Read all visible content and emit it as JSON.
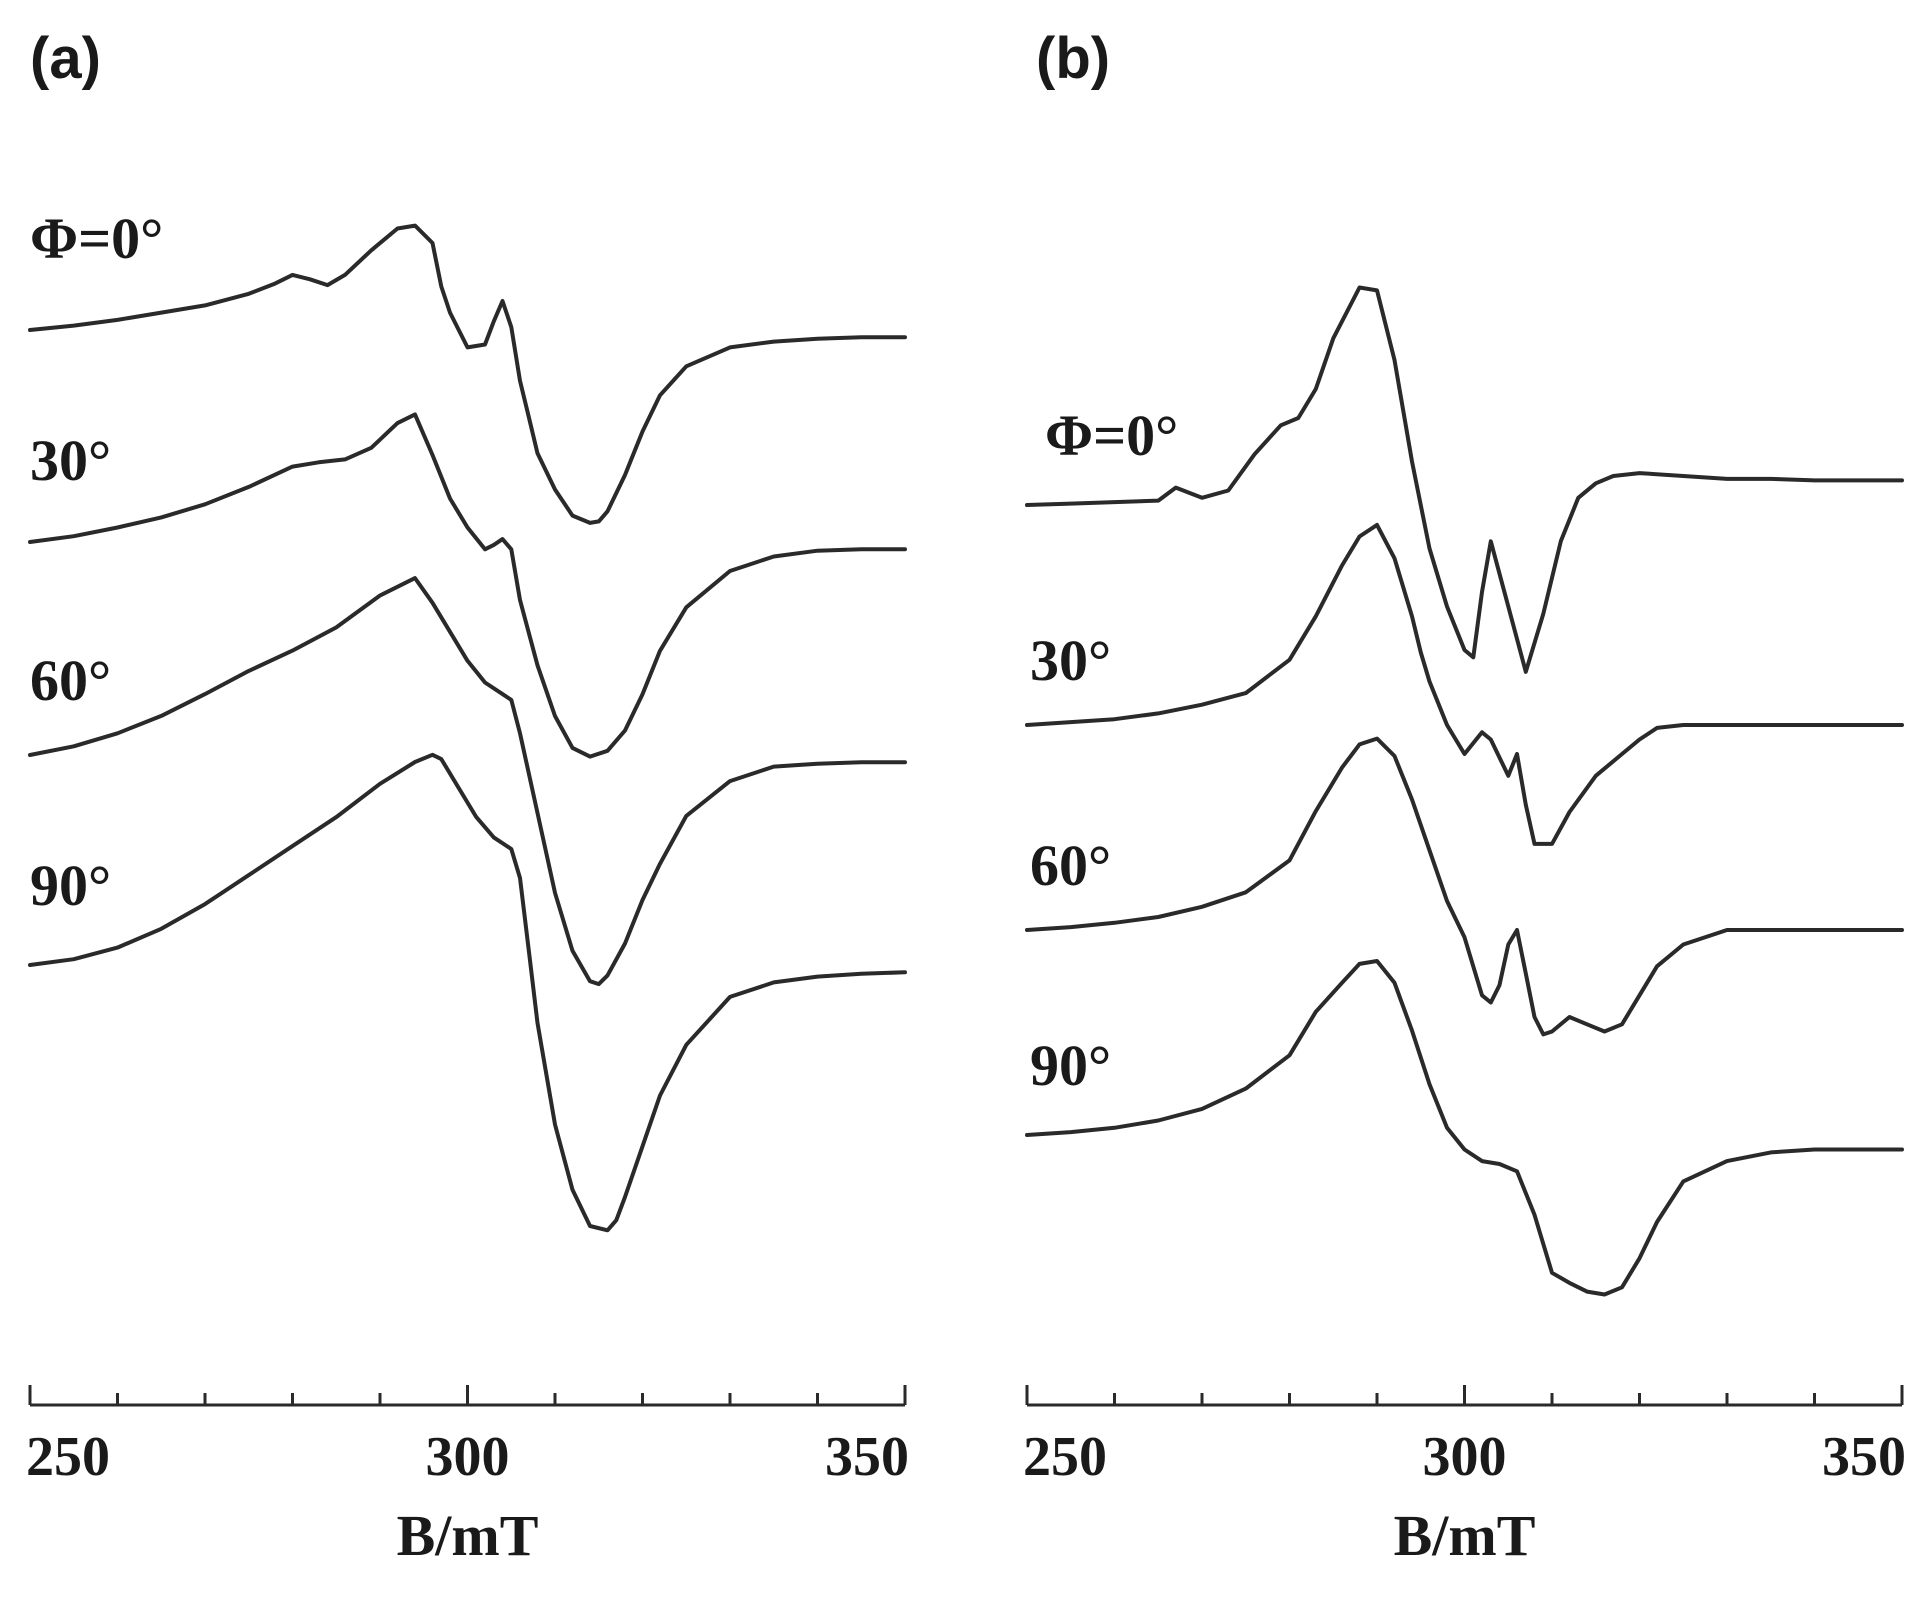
{
  "chart_data": [
    {
      "type": "line",
      "panel_label": "(a)",
      "xlabel": "B/mT",
      "xlim": [
        250,
        350
      ],
      "xticks": [
        250,
        300,
        350
      ],
      "curve_labels": [
        "Φ=0°",
        "30°",
        "60°",
        "90°"
      ],
      "grid": false,
      "series": [
        {
          "name": "Φ=0°",
          "x": [
            250,
            255,
            260,
            265,
            270,
            275,
            278,
            280,
            282,
            284,
            286,
            289,
            292,
            294,
            296,
            297,
            298,
            300,
            302,
            303,
            304,
            305,
            306,
            307,
            308,
            310,
            312,
            314,
            315,
            316,
            318,
            320,
            322,
            325,
            330,
            335,
            340,
            345,
            350
          ],
          "y": [
            0,
            0.03,
            0.07,
            0.12,
            0.17,
            0.25,
            0.32,
            0.38,
            0.35,
            0.31,
            0.38,
            0.55,
            0.7,
            0.72,
            0.6,
            0.3,
            0.12,
            -0.12,
            -0.1,
            0.06,
            0.2,
            0.02,
            -0.35,
            -0.6,
            -0.85,
            -1.1,
            -1.28,
            -1.33,
            -1.32,
            -1.25,
            -1.0,
            -0.7,
            -0.45,
            -0.25,
            -0.12,
            -0.08,
            -0.06,
            -0.05,
            -0.05
          ]
        },
        {
          "name": "30°",
          "x": [
            250,
            255,
            260,
            265,
            270,
            275,
            280,
            283,
            286,
            289,
            292,
            294,
            296,
            298,
            300,
            302,
            303,
            304,
            305,
            306,
            308,
            310,
            312,
            314,
            316,
            318,
            320,
            322,
            325,
            330,
            335,
            340,
            345,
            350
          ],
          "y": [
            0,
            0.04,
            0.1,
            0.17,
            0.26,
            0.38,
            0.52,
            0.55,
            0.57,
            0.65,
            0.82,
            0.88,
            0.6,
            0.3,
            0.1,
            -0.05,
            -0.02,
            0.02,
            -0.05,
            -0.4,
            -0.85,
            -1.2,
            -1.42,
            -1.48,
            -1.44,
            -1.3,
            -1.05,
            -0.75,
            -0.45,
            -0.2,
            -0.1,
            -0.06,
            -0.05,
            -0.05
          ]
        },
        {
          "name": "60°",
          "x": [
            250,
            255,
            260,
            265,
            270,
            275,
            280,
            285,
            290,
            294,
            296,
            298,
            300,
            302,
            304,
            305,
            306,
            308,
            310,
            312,
            314,
            315,
            316,
            318,
            320,
            322,
            325,
            330,
            335,
            340,
            345,
            350
          ],
          "y": [
            0,
            0.06,
            0.15,
            0.27,
            0.42,
            0.58,
            0.72,
            0.88,
            1.1,
            1.22,
            1.05,
            0.85,
            0.65,
            0.5,
            0.42,
            0.38,
            0.15,
            -0.4,
            -0.95,
            -1.35,
            -1.56,
            -1.58,
            -1.52,
            -1.3,
            -1.0,
            -0.75,
            -0.42,
            -0.18,
            -0.08,
            -0.06,
            -0.05,
            -0.05
          ]
        },
        {
          "name": "90°",
          "x": [
            250,
            255,
            260,
            265,
            270,
            275,
            280,
            285,
            290,
            294,
            296,
            297,
            299,
            301,
            303,
            305,
            306,
            307,
            308,
            310,
            312,
            314,
            316,
            317,
            318,
            320,
            322,
            325,
            330,
            335,
            340,
            345,
            350
          ],
          "y": [
            0,
            0.04,
            0.12,
            0.25,
            0.42,
            0.62,
            0.82,
            1.02,
            1.25,
            1.4,
            1.45,
            1.42,
            1.22,
            1.02,
            0.88,
            0.8,
            0.6,
            0.1,
            -0.4,
            -1.1,
            -1.55,
            -1.8,
            -1.83,
            -1.76,
            -1.6,
            -1.25,
            -0.9,
            -0.55,
            -0.22,
            -0.12,
            -0.08,
            -0.06,
            -0.05
          ]
        }
      ]
    },
    {
      "type": "line",
      "panel_label": "(b)",
      "xlabel": "B/mT",
      "xlim": [
        250,
        350
      ],
      "xticks": [
        250,
        300,
        350
      ],
      "curve_labels": [
        "Φ=0°",
        "30°",
        "60°",
        "90°"
      ],
      "grid": false,
      "series": [
        {
          "name": "Φ=0°",
          "x": [
            250,
            255,
            260,
            265,
            267,
            270,
            273,
            276,
            279,
            281,
            283,
            285,
            288,
            290,
            292,
            294,
            296,
            298,
            300,
            301,
            302,
            303,
            305,
            307,
            309,
            311,
            313,
            315,
            317,
            320,
            325,
            330,
            335,
            340,
            345,
            350
          ],
          "y": [
            0,
            0.01,
            0.02,
            0.03,
            0.12,
            0.05,
            0.1,
            0.35,
            0.55,
            0.6,
            0.8,
            1.15,
            1.5,
            1.48,
            1.0,
            0.3,
            -0.3,
            -0.7,
            -1.0,
            -1.05,
            -0.6,
            -0.25,
            -0.7,
            -1.15,
            -0.75,
            -0.25,
            0.05,
            0.15,
            0.2,
            0.22,
            0.2,
            0.18,
            0.18,
            0.17,
            0.17,
            0.17
          ]
        },
        {
          "name": "30°",
          "x": [
            250,
            255,
            260,
            265,
            270,
            275,
            280,
            283,
            286,
            288,
            290,
            292,
            294,
            295,
            296,
            298,
            300,
            302,
            303,
            305,
            306,
            307,
            308,
            310,
            312,
            315,
            318,
            320,
            322,
            325,
            330,
            335,
            340,
            345,
            350
          ],
          "y": [
            0,
            0.02,
            0.04,
            0.08,
            0.14,
            0.22,
            0.45,
            0.75,
            1.1,
            1.3,
            1.38,
            1.15,
            0.75,
            0.5,
            0.3,
            0.0,
            -0.2,
            -0.05,
            -0.1,
            -0.35,
            -0.2,
            -0.55,
            -0.82,
            -0.82,
            -0.6,
            -0.35,
            -0.2,
            -0.1,
            -0.02,
            0.0,
            0.0,
            0.0,
            0.0,
            0.0,
            0.0
          ]
        },
        {
          "name": "60°",
          "x": [
            250,
            255,
            260,
            265,
            270,
            275,
            280,
            283,
            286,
            288,
            290,
            292,
            294,
            296,
            298,
            300,
            302,
            303,
            304,
            305,
            306,
            307,
            308,
            309,
            310,
            312,
            314,
            316,
            318,
            320,
            322,
            325,
            330,
            335,
            340,
            345,
            350
          ],
          "y": [
            0,
            0.02,
            0.05,
            0.09,
            0.16,
            0.26,
            0.48,
            0.82,
            1.12,
            1.28,
            1.32,
            1.2,
            0.9,
            0.55,
            0.2,
            -0.05,
            -0.45,
            -0.5,
            -0.38,
            -0.1,
            0.0,
            -0.3,
            -0.6,
            -0.72,
            -0.7,
            -0.6,
            -0.65,
            -0.7,
            -0.65,
            -0.45,
            -0.25,
            -0.1,
            0.0,
            0.0,
            0.0,
            0.0,
            0.0
          ]
        },
        {
          "name": "90°",
          "x": [
            250,
            255,
            260,
            265,
            270,
            275,
            280,
            283,
            286,
            288,
            290,
            292,
            294,
            296,
            298,
            300,
            302,
            304,
            306,
            308,
            310,
            312,
            314,
            316,
            318,
            320,
            322,
            325,
            330,
            335,
            340,
            345,
            350
          ],
          "y": [
            0,
            0.02,
            0.05,
            0.1,
            0.18,
            0.32,
            0.55,
            0.85,
            1.05,
            1.18,
            1.2,
            1.05,
            0.72,
            0.35,
            0.05,
            -0.1,
            -0.18,
            -0.2,
            -0.25,
            -0.55,
            -0.95,
            -1.02,
            -1.08,
            -1.1,
            -1.05,
            -0.85,
            -0.6,
            -0.32,
            -0.18,
            -0.12,
            -0.1,
            -0.1,
            -0.1
          ]
        }
      ]
    }
  ]
}
